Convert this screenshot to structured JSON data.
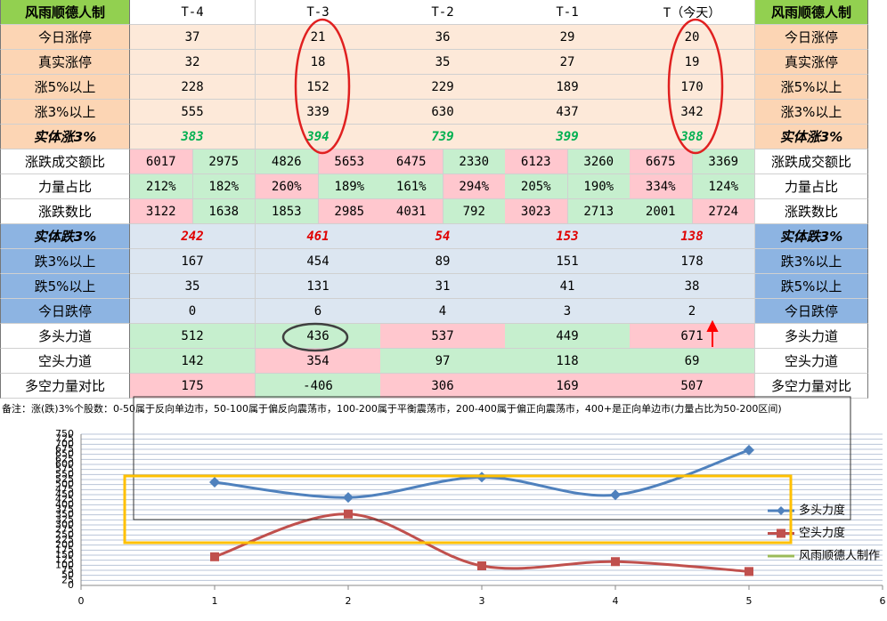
{
  "table": {
    "corner": "风雨顺德人制",
    "columns": [
      "T-4",
      "T-3",
      "T-2",
      "T-1",
      "T（今天）"
    ],
    "right_corner": "风雨顺德人制",
    "rows": [
      {
        "label": "今日涨停",
        "cells": [
          37,
          21,
          36,
          29,
          20
        ]
      },
      {
        "label": "真实涨停",
        "cells": [
          32,
          18,
          35,
          27,
          19
        ]
      },
      {
        "label": "涨5%以上",
        "cells": [
          228,
          152,
          229,
          189,
          170
        ]
      },
      {
        "label": "涨3%以上",
        "cells": [
          555,
          339,
          630,
          437,
          342
        ]
      },
      {
        "label": "实体涨3%",
        "cells": [
          383,
          394,
          739,
          399,
          388
        ]
      },
      {
        "label": "涨跌成交额比",
        "cells": [
          [
            6017,
            2975
          ],
          [
            4826,
            5653
          ],
          [
            6475,
            2330
          ],
          [
            6123,
            3260
          ],
          [
            6675,
            3369
          ]
        ],
        "colors": [
          [
            "#ffc7ce",
            "#c6efce"
          ],
          [
            "#c6efce",
            "#ffc7ce"
          ],
          [
            "#ffc7ce",
            "#c6efce"
          ],
          [
            "#ffc7ce",
            "#c6efce"
          ],
          [
            "#ffc7ce",
            "#c6efce"
          ]
        ]
      },
      {
        "label": "力量占比",
        "cells": [
          [
            "212%",
            "182%"
          ],
          [
            "260%",
            "189%"
          ],
          [
            "161%",
            "294%"
          ],
          [
            "205%",
            "190%"
          ],
          [
            "334%",
            "124%"
          ]
        ],
        "colors": [
          [
            "#c6efce",
            "#c6efce"
          ],
          [
            "#ffc7ce",
            "#c6efce"
          ],
          [
            "#c6efce",
            "#ffc7ce"
          ],
          [
            "#c6efce",
            "#c6efce"
          ],
          [
            "#ffc7ce",
            "#c6efce"
          ]
        ]
      },
      {
        "label": "涨跌数比",
        "cells": [
          [
            3122,
            1638
          ],
          [
            1853,
            2985
          ],
          [
            4031,
            792
          ],
          [
            3023,
            2713
          ],
          [
            2001,
            2724
          ]
        ],
        "colors": [
          [
            "#ffc7ce",
            "#c6efce"
          ],
          [
            "#c6efce",
            "#ffc7ce"
          ],
          [
            "#ffc7ce",
            "#c6efce"
          ],
          [
            "#ffc7ce",
            "#c6efce"
          ],
          [
            "#c6efce",
            "#ffc7ce"
          ]
        ]
      },
      {
        "label": "实体跌3%",
        "cells": [
          242,
          461,
          54,
          153,
          138
        ]
      },
      {
        "label": "跌3%以上",
        "cells": [
          167,
          454,
          89,
          151,
          178
        ]
      },
      {
        "label": "跌5%以上",
        "cells": [
          35,
          131,
          31,
          41,
          38
        ]
      },
      {
        "label": "今日跌停",
        "cells": [
          0,
          6,
          4,
          3,
          2
        ]
      },
      {
        "label": "多头力道",
        "cells": [
          512,
          436,
          537,
          449,
          671
        ],
        "colors": [
          "#c6efce",
          "#c6efce",
          "#ffc7ce",
          "#c6efce",
          "#ffc7ce"
        ]
      },
      {
        "label": "空头力道",
        "cells": [
          142,
          354,
          97,
          118,
          69
        ],
        "colors": [
          "#c6efce",
          "#ffc7ce",
          "#c6efce",
          "#c6efce",
          "#c6efce"
        ]
      },
      {
        "label": "多空力量对比",
        "cells": [
          175,
          -406,
          306,
          169,
          507
        ],
        "colors": [
          "#ffc7ce",
          "#c6efce",
          "#ffc7ce",
          "#ffc7ce",
          "#ffc7ce"
        ]
      }
    ],
    "note": "备注：涨(跌)3%个股数：0-50属于反向单边市，50-100属于偏反向震荡市，100-200属于平衡震荡市，200-400属于偏正向震荡市，400+是正向单边市(力量占比为50-200区间)"
  },
  "chart_data": {
    "type": "line",
    "x": [
      1,
      2,
      3,
      4,
      5
    ],
    "series": [
      {
        "name": "多头力度",
        "color": "#4f81bd",
        "values": [
          512,
          436,
          537,
          449,
          671
        ]
      },
      {
        "name": "空头力度",
        "color": "#c0504d",
        "values": [
          142,
          354,
          97,
          118,
          69
        ]
      },
      {
        "name": "风雨顺德人制作",
        "color": "#9bbb59",
        "values": [
          null,
          null,
          null,
          null,
          null
        ]
      }
    ],
    "xlim": [
      0,
      6
    ],
    "xticks": [
      0,
      1,
      2,
      3,
      4,
      5,
      6
    ],
    "ylim": [
      0,
      750
    ],
    "yticks": [
      0,
      25,
      50,
      75,
      100,
      125,
      150,
      175,
      200,
      225,
      250,
      275,
      300,
      325,
      350,
      375,
      400,
      425,
      450,
      475,
      500,
      525,
      550,
      575,
      600,
      625,
      650,
      675,
      700,
      725,
      750
    ],
    "grid": true
  }
}
